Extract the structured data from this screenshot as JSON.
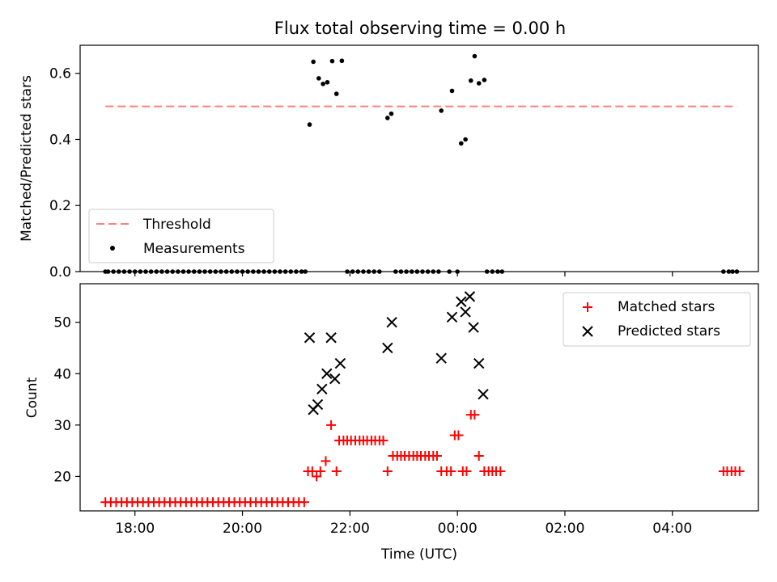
{
  "title": "Flux total observing time = 0.00 h",
  "chart_data": [
    {
      "type": "scatter",
      "name": "ratio-panel",
      "ylabel": "Matched/Predicted stars",
      "ylim": [
        0,
        0.685
      ],
      "yticks": [
        0.0,
        0.2,
        0.4,
        0.6
      ],
      "ytick_labels": [
        "0.0",
        "0.2",
        "0.4",
        "0.6"
      ],
      "legend": {
        "position": "lower-left",
        "entries": [
          {
            "label": "Threshold",
            "kind": "dashed-line",
            "color": "#ff7f7f"
          },
          {
            "label": "Measurements",
            "kind": "dot",
            "color": "#000000"
          }
        ]
      },
      "threshold": {
        "value": 0.5,
        "x_start": 17.45,
        "x_end": 29.2,
        "color": "#ff7f7f"
      },
      "measurements": [
        [
          21.25,
          0.445
        ],
        [
          21.32,
          0.635
        ],
        [
          21.42,
          0.585
        ],
        [
          21.5,
          0.568
        ],
        [
          21.58,
          0.573
        ],
        [
          21.67,
          0.637
        ],
        [
          21.75,
          0.538
        ],
        [
          21.85,
          0.638
        ],
        [
          22.7,
          0.465
        ],
        [
          22.77,
          0.478
        ],
        [
          23.7,
          0.487
        ],
        [
          23.9,
          0.547
        ],
        [
          24.07,
          0.388
        ],
        [
          24.15,
          0.4
        ],
        [
          24.25,
          0.578
        ],
        [
          24.32,
          0.652
        ],
        [
          24.4,
          0.57
        ],
        [
          24.5,
          0.58
        ],
        [
          17.45,
          0
        ],
        [
          17.5,
          0
        ],
        [
          17.6,
          0
        ],
        [
          17.7,
          0
        ],
        [
          17.8,
          0
        ],
        [
          17.9,
          0
        ],
        [
          18.0,
          0
        ],
        [
          18.1,
          0
        ],
        [
          18.2,
          0
        ],
        [
          18.3,
          0
        ],
        [
          18.4,
          0
        ],
        [
          18.5,
          0
        ],
        [
          18.6,
          0
        ],
        [
          18.7,
          0
        ],
        [
          18.8,
          0
        ],
        [
          18.9,
          0
        ],
        [
          19.0,
          0
        ],
        [
          19.1,
          0
        ],
        [
          19.2,
          0
        ],
        [
          19.3,
          0
        ],
        [
          19.4,
          0
        ],
        [
          19.5,
          0
        ],
        [
          19.6,
          0
        ],
        [
          19.7,
          0
        ],
        [
          19.8,
          0
        ],
        [
          19.9,
          0
        ],
        [
          20.0,
          0
        ],
        [
          20.1,
          0
        ],
        [
          20.2,
          0
        ],
        [
          20.3,
          0
        ],
        [
          20.4,
          0
        ],
        [
          20.5,
          0
        ],
        [
          20.6,
          0
        ],
        [
          20.7,
          0
        ],
        [
          20.8,
          0
        ],
        [
          20.9,
          0
        ],
        [
          21.0,
          0
        ],
        [
          21.1,
          0
        ],
        [
          21.17,
          0
        ],
        [
          21.95,
          0
        ],
        [
          22.05,
          0
        ],
        [
          22.15,
          0
        ],
        [
          22.25,
          0
        ],
        [
          22.35,
          0
        ],
        [
          22.45,
          0
        ],
        [
          22.55,
          0
        ],
        [
          22.85,
          0
        ],
        [
          22.95,
          0
        ],
        [
          23.05,
          0
        ],
        [
          23.15,
          0
        ],
        [
          23.25,
          0
        ],
        [
          23.35,
          0
        ],
        [
          23.45,
          0
        ],
        [
          23.55,
          0
        ],
        [
          23.65,
          0
        ],
        [
          23.85,
          0
        ],
        [
          24.0,
          0
        ],
        [
          24.55,
          0
        ],
        [
          24.65,
          0
        ],
        [
          24.75,
          0
        ],
        [
          24.83,
          0
        ],
        [
          28.95,
          0
        ],
        [
          29.05,
          0
        ],
        [
          29.12,
          0
        ],
        [
          29.2,
          0
        ]
      ]
    },
    {
      "type": "scatter",
      "name": "count-panel",
      "xlabel": "Time (UTC)",
      "ylabel": "Count",
      "xlim": [
        16.98,
        29.6
      ],
      "xticks": [
        18,
        20,
        22,
        24,
        26,
        28
      ],
      "xtick_labels": [
        "18:00",
        "20:00",
        "22:00",
        "00:00",
        "02:00",
        "04:00"
      ],
      "ylim": [
        13.3,
        57.5
      ],
      "yticks": [
        20,
        30,
        40,
        50
      ],
      "ytick_labels": [
        "20",
        "30",
        "40",
        "50"
      ],
      "legend": {
        "position": "upper-right",
        "entries": [
          {
            "label": "Matched stars",
            "kind": "plus",
            "color": "#ff0000"
          },
          {
            "label": "Predicted stars",
            "kind": "cross",
            "color": "#000000"
          }
        ]
      },
      "matched": [
        [
          17.45,
          15
        ],
        [
          17.55,
          15
        ],
        [
          17.65,
          15
        ],
        [
          17.75,
          15
        ],
        [
          17.85,
          15
        ],
        [
          17.95,
          15
        ],
        [
          18.05,
          15
        ],
        [
          18.15,
          15
        ],
        [
          18.25,
          15
        ],
        [
          18.35,
          15
        ],
        [
          18.45,
          15
        ],
        [
          18.55,
          15
        ],
        [
          18.65,
          15
        ],
        [
          18.75,
          15
        ],
        [
          18.85,
          15
        ],
        [
          18.95,
          15
        ],
        [
          19.05,
          15
        ],
        [
          19.15,
          15
        ],
        [
          19.25,
          15
        ],
        [
          19.35,
          15
        ],
        [
          19.45,
          15
        ],
        [
          19.55,
          15
        ],
        [
          19.65,
          15
        ],
        [
          19.75,
          15
        ],
        [
          19.85,
          15
        ],
        [
          19.95,
          15
        ],
        [
          20.05,
          15
        ],
        [
          20.15,
          15
        ],
        [
          20.25,
          15
        ],
        [
          20.35,
          15
        ],
        [
          20.45,
          15
        ],
        [
          20.55,
          15
        ],
        [
          20.65,
          15
        ],
        [
          20.75,
          15
        ],
        [
          20.85,
          15
        ],
        [
          20.95,
          15
        ],
        [
          21.05,
          15
        ],
        [
          21.15,
          15
        ],
        [
          21.22,
          21
        ],
        [
          21.3,
          21
        ],
        [
          21.38,
          20
        ],
        [
          21.45,
          21
        ],
        [
          21.55,
          23
        ],
        [
          21.65,
          30
        ],
        [
          21.75,
          21
        ],
        [
          21.8,
          27
        ],
        [
          21.88,
          27
        ],
        [
          21.95,
          27
        ],
        [
          22.02,
          27
        ],
        [
          22.1,
          27
        ],
        [
          22.18,
          27
        ],
        [
          22.25,
          27
        ],
        [
          22.32,
          27
        ],
        [
          22.4,
          27
        ],
        [
          22.47,
          27
        ],
        [
          22.55,
          27
        ],
        [
          22.62,
          27
        ],
        [
          22.7,
          21
        ],
        [
          22.8,
          24
        ],
        [
          22.88,
          24
        ],
        [
          22.95,
          24
        ],
        [
          23.02,
          24
        ],
        [
          23.1,
          24
        ],
        [
          23.18,
          24
        ],
        [
          23.25,
          24
        ],
        [
          23.32,
          24
        ],
        [
          23.4,
          24
        ],
        [
          23.47,
          24
        ],
        [
          23.55,
          24
        ],
        [
          23.62,
          24
        ],
        [
          23.7,
          21
        ],
        [
          23.8,
          21
        ],
        [
          23.88,
          21
        ],
        [
          23.95,
          28
        ],
        [
          24.02,
          28
        ],
        [
          24.1,
          21
        ],
        [
          24.17,
          21
        ],
        [
          24.25,
          32
        ],
        [
          24.32,
          32
        ],
        [
          24.4,
          24
        ],
        [
          24.5,
          21
        ],
        [
          24.58,
          21
        ],
        [
          24.65,
          21
        ],
        [
          24.72,
          21
        ],
        [
          24.8,
          21
        ],
        [
          28.95,
          21
        ],
        [
          29.02,
          21
        ],
        [
          29.1,
          21
        ],
        [
          29.17,
          21
        ],
        [
          29.25,
          21
        ]
      ],
      "predicted": [
        [
          21.25,
          47
        ],
        [
          21.32,
          33
        ],
        [
          21.4,
          34
        ],
        [
          21.48,
          37
        ],
        [
          21.57,
          40
        ],
        [
          21.65,
          47
        ],
        [
          21.72,
          39
        ],
        [
          21.82,
          42
        ],
        [
          22.7,
          45
        ],
        [
          22.78,
          50
        ],
        [
          23.7,
          43
        ],
        [
          23.9,
          51
        ],
        [
          24.07,
          54
        ],
        [
          24.15,
          52
        ],
        [
          24.23,
          55
        ],
        [
          24.3,
          49
        ],
        [
          24.4,
          42
        ],
        [
          24.48,
          36
        ]
      ]
    }
  ]
}
